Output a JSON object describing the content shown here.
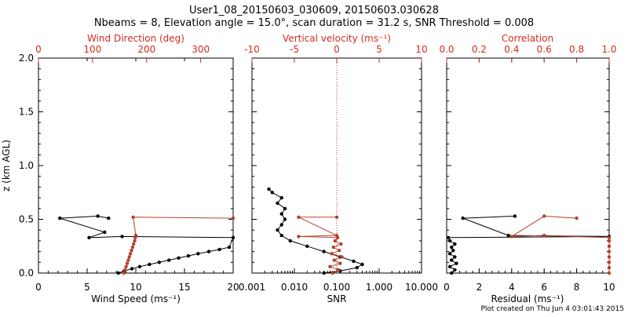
{
  "colors": {
    "axis": "#000000",
    "accent": "#d42b1f",
    "profile": "#b5412a",
    "data": "#000000"
  },
  "chart_data": [
    {
      "type": "scatter",
      "panel": "wind",
      "title_line1": "User1_08_20150603_030609, 20150603.030628",
      "title_line2": "Nbeams = 8, Elevation angle = 15.0°, scan duration = 31.2 s, SNR Threshold = 0.008",
      "xlabel": "Wind Speed (ms⁻¹)",
      "xlim": [
        0,
        20
      ],
      "xticks": [
        0,
        5,
        10,
        15,
        20
      ],
      "ylabel": "z (km AGL)",
      "ylim": [
        0,
        2
      ],
      "yticks": [
        "0.0",
        "0.5",
        "1.0",
        "1.5",
        "2.0"
      ],
      "top_axis": {
        "label": "Wind Direction (deg)",
        "xlim": [
          0,
          360
        ],
        "xticks": [
          0,
          100,
          200,
          300
        ]
      },
      "series": [
        {
          "name": "Wind Speed",
          "axis": "bottom",
          "color": "#000000",
          "points": [
            [
              8.2,
              0.0
            ],
            [
              8.8,
              0.02
            ],
            [
              9.6,
              0.04
            ],
            [
              10.4,
              0.06
            ],
            [
              11.4,
              0.08
            ],
            [
              12.4,
              0.1
            ],
            [
              13.4,
              0.12
            ],
            [
              14.4,
              0.14
            ],
            [
              15.4,
              0.16
            ],
            [
              16.4,
              0.18
            ],
            [
              17.5,
              0.2
            ],
            [
              18.6,
              0.22
            ],
            [
              19.6,
              0.24
            ],
            [
              20,
              0.33
            ],
            [
              8.6,
              0.34
            ],
            [
              5.2,
              0.33
            ],
            [
              6.8,
              0.38
            ],
            [
              2.2,
              0.51
            ],
            [
              6.1,
              0.53
            ],
            [
              7.2,
              0.51
            ]
          ]
        },
        {
          "name": "Wind Direction",
          "axis": "top",
          "color": "#b5412a",
          "points": [
            [
              158,
              0.0
            ],
            [
              160,
              0.03
            ],
            [
              162,
              0.06
            ],
            [
              164,
              0.09
            ],
            [
              166,
              0.12
            ],
            [
              168,
              0.15
            ],
            [
              170,
              0.18
            ],
            [
              172,
              0.21
            ],
            [
              174,
              0.24
            ],
            [
              176,
              0.27
            ],
            [
              178,
              0.3
            ],
            [
              179,
              0.33
            ],
            [
              180,
              0.35
            ],
            [
              175,
              0.52
            ],
            [
              360,
              0.51
            ]
          ]
        }
      ]
    },
    {
      "type": "scatter",
      "panel": "snr",
      "xlabel": "SNR",
      "xscale": "log",
      "xlim": [
        0.001,
        10
      ],
      "xticks": [
        "0.001",
        "0.010",
        "0.100",
        "1.000",
        "10.000"
      ],
      "ylim": [
        0,
        2
      ],
      "top_axis": {
        "label": "Vertical velocity (ms⁻¹)",
        "xlim": [
          -10,
          10
        ],
        "xticks": [
          -10,
          -5,
          0,
          5,
          10
        ],
        "zero_line": 0
      },
      "series": [
        {
          "name": "SNR",
          "axis": "bottom",
          "color": "#000000",
          "points": [
            [
              0.05,
              0.0
            ],
            [
              0.12,
              0.02
            ],
            [
              0.3,
              0.05
            ],
            [
              0.4,
              0.08
            ],
            [
              0.25,
              0.11
            ],
            [
              0.12,
              0.15
            ],
            [
              0.05,
              0.2
            ],
            [
              0.02,
              0.25
            ],
            [
              0.008,
              0.3
            ],
            [
              0.005,
              0.35
            ],
            [
              0.004,
              0.4
            ],
            [
              0.005,
              0.45
            ],
            [
              0.006,
              0.5
            ],
            [
              0.005,
              0.55
            ],
            [
              0.006,
              0.6
            ],
            [
              0.004,
              0.65
            ],
            [
              0.005,
              0.7
            ],
            [
              0.003,
              0.75
            ],
            [
              0.0025,
              0.78
            ]
          ]
        },
        {
          "name": "Vertical velocity",
          "axis": "top",
          "color": "#b5412a",
          "points": [
            [
              -0.5,
              0.0
            ],
            [
              0.2,
              0.03
            ],
            [
              -0.8,
              0.06
            ],
            [
              0.4,
              0.09
            ],
            [
              -0.3,
              0.12
            ],
            [
              0.6,
              0.15
            ],
            [
              -0.6,
              0.18
            ],
            [
              0.3,
              0.21
            ],
            [
              -0.4,
              0.24
            ],
            [
              0.5,
              0.27
            ],
            [
              -0.2,
              0.3
            ],
            [
              0.1,
              0.33
            ],
            [
              -4.5,
              0.34
            ],
            [
              0.0,
              0.35
            ],
            [
              -4.5,
              0.52
            ],
            [
              0.0,
              0.52
            ]
          ]
        }
      ]
    },
    {
      "type": "scatter",
      "panel": "residual",
      "xlabel": "Residual (ms⁻¹)",
      "xlim": [
        0,
        10
      ],
      "xticks": [
        0,
        2,
        4,
        6,
        8,
        10
      ],
      "ylim": [
        0,
        2
      ],
      "top_axis": {
        "label": "Correlation",
        "xlim": [
          0,
          1
        ],
        "xticks": [
          "0.0",
          "0.2",
          "0.4",
          "0.6",
          "0.8",
          "1.0"
        ]
      },
      "series": [
        {
          "name": "Residual",
          "axis": "bottom",
          "color": "#000000",
          "points": [
            [
              0.3,
              0.0
            ],
            [
              0.5,
              0.03
            ],
            [
              0.2,
              0.06
            ],
            [
              0.6,
              0.09
            ],
            [
              0.3,
              0.12
            ],
            [
              0.5,
              0.15
            ],
            [
              0.2,
              0.18
            ],
            [
              0.4,
              0.21
            ],
            [
              0.3,
              0.24
            ],
            [
              0.5,
              0.27
            ],
            [
              0.2,
              0.3
            ],
            [
              0.1,
              0.33
            ],
            [
              10,
              0.34
            ],
            [
              3.8,
              0.35
            ],
            [
              1.0,
              0.51
            ],
            [
              4.2,
              0.53
            ]
          ]
        },
        {
          "name": "Correlation",
          "axis": "top",
          "color": "#b5412a",
          "points": [
            [
              1.0,
              0.0
            ],
            [
              1.0,
              0.05
            ],
            [
              1.0,
              0.1
            ],
            [
              1.0,
              0.15
            ],
            [
              1.0,
              0.2
            ],
            [
              1.0,
              0.25
            ],
            [
              1.0,
              0.3
            ],
            [
              1.0,
              0.33
            ],
            [
              0.6,
              0.35
            ],
            [
              0.4,
              0.34
            ],
            [
              0.6,
              0.53
            ],
            [
              0.8,
              0.51
            ]
          ]
        }
      ]
    }
  ],
  "footer": "Plot created on Thu Jun  4 03:01:43 2015"
}
